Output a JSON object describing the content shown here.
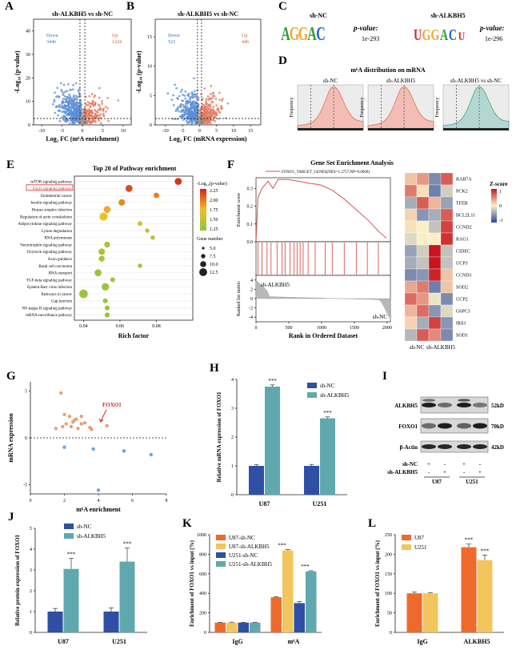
{
  "panels": {
    "A": {
      "label": "A",
      "title": "sh-ALKBH5 vs sh-NC",
      "xlabel": "Log₂ FC (m⁶A enrichment)",
      "ylabel": "-Log₁₀ (p-value)",
      "down_label": "Down",
      "down_count": "3446",
      "up_label": "Up",
      "up_count": "1224",
      "xticks": [
        "-10",
        "-5",
        "0",
        "5",
        "10"
      ],
      "yticks": [
        "0",
        "10",
        "20",
        "30",
        "40"
      ],
      "down_color": "#5b8fd4",
      "up_color": "#e07a5f"
    },
    "B": {
      "label": "B",
      "title": "sh-ALKBH5 vs sh-NC",
      "xlabel": "Log₂ FC (mRNA expression)",
      "ylabel": "-Log₁₀ (p-value)",
      "down_label": "Down",
      "down_count": "523",
      "up_label": "Up",
      "up_count": "446",
      "xticks": [
        "-10",
        "-5",
        "0",
        "5",
        "10",
        "15"
      ],
      "yticks": [
        "0",
        "5",
        "10",
        "15"
      ]
    },
    "C": {
      "label": "C",
      "left_title": "sh-NC",
      "left_motif": "GGAC",
      "left_pvalue_label": "p-value:",
      "left_pvalue": "1e-293",
      "right_title": "sh-ALKBH5",
      "right_motif": "GGAC",
      "right_pvalue_label": "p-value:",
      "right_pvalue": "1e-296"
    },
    "D": {
      "label": "D",
      "title": "m⁶A distribution on mRNA",
      "subplots": [
        {
          "title": "sh-NC",
          "fill": "#f4b5ad",
          "line": "#e07a5f"
        },
        {
          "title": "sh-ALKBH5",
          "fill": "#f4b5ad",
          "line": "#e07a5f"
        },
        {
          "title": "sh-ALKBH5 vs sh-NC",
          "fill": "#a8d5cd",
          "line": "#5aa597"
        }
      ],
      "ylabel": "Frequency"
    },
    "E": {
      "label": "E",
      "title": "Top 20 of Pathway enrichment",
      "xlabel": "Rich factor",
      "xticks": [
        "0.04",
        "0.06",
        "0.08"
      ],
      "legend_color_title": "-Log₁₀(p-value)",
      "legend_color_ticks": [
        "2.25",
        "2.00",
        "1.75",
        "1.50",
        "1.25"
      ],
      "legend_size_title": "Gene number",
      "legend_size_ticks": [
        "5.0",
        "7.5",
        "10.0",
        "12.5"
      ],
      "highlighted": "FoxO signaling pathway",
      "highlight_color": "#d62728"
    },
    "F": {
      "label": "F",
      "title": "Gene Set Enrichment Analysis",
      "legend": "FOXO1_TARGET_GENES(NES=1.2757,NP=0.0000)",
      "ylabel_top": "Enrichment score",
      "ylabel_bottom": "Ranked list metric",
      "xlabel": "Rank in Ordered Dataset",
      "xticks": [
        "0",
        "500",
        "1000",
        "1500",
        "2000"
      ],
      "yticks_top": [
        "0.0",
        "0.1",
        "0.2",
        "0.3"
      ],
      "yticks_bottom": [
        "-4",
        "-2",
        "0",
        "2",
        "4"
      ],
      "group_top": "sh-ALKBH5",
      "group_bottom": "sh-NC",
      "heatmap_xlabels": [
        "sh-NC",
        "sh-ALKBH5"
      ],
      "heatmap_legend_title": "Z-score",
      "heatmap_legend_ticks": [
        "1",
        "0",
        "-1"
      ],
      "line_color": "#d9534f"
    },
    "G": {
      "label": "G",
      "xlabel": "m⁶A enrichment",
      "ylabel": "mRNA expression",
      "highlight": "FOXO1",
      "xticks": [
        "0",
        "2",
        "4",
        "6",
        "8"
      ],
      "yticks": [
        "5",
        "0",
        "-5"
      ]
    },
    "H": {
      "label": "H",
      "ylabel": "Relative mRNA expression of FOXO1",
      "legend": [
        "sh-NC",
        "sh-ALKBH5"
      ],
      "yticks": [
        "0",
        "1",
        "2",
        "3",
        "4"
      ],
      "sig": [
        "***",
        "***"
      ]
    },
    "I": {
      "label": "I",
      "rows": [
        "ALKBH5",
        "FOXO1",
        "β-Actin"
      ],
      "sizes": [
        "52kD",
        "70kD",
        "42kD"
      ],
      "shNC_label": "sh-NC",
      "shALKBH5_label": "sh-ALKBH5",
      "shNC_signs": [
        "+",
        "-",
        "+",
        "-"
      ],
      "shALKBH5_signs": [
        "-",
        "+",
        "-",
        "+"
      ],
      "cells": [
        "U87",
        "U251"
      ]
    },
    "J": {
      "label": "J",
      "ylabel": "Relative protein expression of FOXO1",
      "legend": [
        "sh-NC",
        "sh-ALKBH5"
      ],
      "yticks": [
        "0",
        "1",
        "2",
        "3",
        "4",
        "5"
      ],
      "sig": [
        "***",
        "***"
      ]
    },
    "K": {
      "label": "K",
      "ylabel": "Enrichment of FOXO1 vs input (%)",
      "legend": [
        "U87-sh-NC",
        "U87-sh-ALKBH5",
        "U251-sh-NC",
        "U251-sh-ALKBH5"
      ],
      "yticks": [
        "0",
        "200",
        "400",
        "600",
        "800",
        "1000"
      ],
      "sig": [
        "***",
        "***"
      ]
    },
    "L": {
      "label": "L",
      "ylabel": "Enrichment of FOXO1 vs input (%)",
      "legend": [
        "U87",
        "U251"
      ],
      "yticks": [
        "0",
        "50",
        "100",
        "150",
        "200",
        "250"
      ],
      "sig": [
        "***",
        "***"
      ]
    }
  },
  "chart_data": [
    {
      "panel": "E",
      "type": "scatter",
      "title": "Top 20 of Pathway enrichment",
      "xlabel": "Rich factor",
      "xlim": [
        0.035,
        0.1
      ],
      "categories": [
        "mTOR signaling pathway",
        "FoxO signaling pathway",
        "Endometrial cancer",
        "Insulin signaling pathway",
        "Herpes simplex infection",
        "Regulation of actin cytoskeleton",
        "Adipocytokine signaling pathway",
        "Lysine degradation",
        "RNA polymerase",
        "Neurotrophin signaling pathway",
        "Oxytocin signaling pathway",
        "Axon guidance",
        "Basal cell carcinoma",
        "RNA transport",
        "TGF-beta signaling pathway",
        "Epstein-Barr virus infection",
        "Pathways in cancer",
        "Gap junction",
        "NF-kappa B signaling pathway",
        "mRNA surveillance pathway"
      ],
      "x": [
        0.092,
        0.065,
        0.08,
        0.061,
        0.053,
        0.051,
        0.071,
        0.075,
        0.078,
        0.053,
        0.05,
        0.05,
        0.071,
        0.048,
        0.056,
        0.052,
        0.04,
        0.052,
        0.053,
        0.053
      ],
      "gene_number": [
        9,
        9,
        6,
        8,
        9,
        11,
        5,
        4,
        4,
        7,
        8,
        7,
        4,
        9,
        5,
        10,
        12,
        5,
        5,
        5
      ],
      "neg_log10_p": [
        2.4,
        2.3,
        2.1,
        2.05,
        1.9,
        1.8,
        1.65,
        1.5,
        1.45,
        1.4,
        1.35,
        1.35,
        1.3,
        1.3,
        1.3,
        1.3,
        1.3,
        1.25,
        1.25,
        1.25
      ]
    },
    {
      "panel": "H",
      "type": "bar",
      "ylabel": "Relative mRNA expression of FOXO1",
      "categories": [
        "U87",
        "U251"
      ],
      "ylim": [
        0,
        4
      ],
      "series": [
        {
          "name": "sh-NC",
          "values": [
            1.0,
            1.0
          ],
          "errors": [
            0.04,
            0.05
          ],
          "color": "#2e4fa3"
        },
        {
          "name": "sh-ALKBH5",
          "values": [
            3.75,
            2.65
          ],
          "errors": [
            0.06,
            0.05
          ],
          "color": "#5fa9ae"
        }
      ]
    },
    {
      "panel": "J",
      "type": "bar",
      "ylabel": "Relative protein expression of FOXO1",
      "categories": [
        "U87",
        "U251"
      ],
      "ylim": [
        0,
        5
      ],
      "series": [
        {
          "name": "sh-NC",
          "values": [
            1.0,
            1.0
          ],
          "errors": [
            0.15,
            0.18
          ],
          "color": "#2e4fa3"
        },
        {
          "name": "sh-ALKBH5",
          "values": [
            3.05,
            3.4
          ],
          "errors": [
            0.5,
            0.65
          ],
          "color": "#5fa9ae"
        }
      ]
    },
    {
      "panel": "K",
      "type": "bar",
      "ylabel": "Enrichment of FOXO1 vs input (%)",
      "categories": [
        "IgG",
        "m⁶A"
      ],
      "ylim": [
        0,
        1000
      ],
      "series": [
        {
          "name": "U87-sh-NC",
          "values": [
            100,
            360
          ],
          "errors": [
            3,
            4
          ],
          "color": "#ee6a2c"
        },
        {
          "name": "U87-sh-ALKBH5",
          "values": [
            100,
            840
          ],
          "errors": [
            3,
            8
          ],
          "color": "#f2c65c"
        },
        {
          "name": "U251-sh-NC",
          "values": [
            100,
            300
          ],
          "errors": [
            3,
            15
          ],
          "color": "#2e4fa3"
        },
        {
          "name": "U251-sh-ALKBH5",
          "values": [
            100,
            625
          ],
          "errors": [
            3,
            6
          ],
          "color": "#5fa9ae"
        }
      ]
    },
    {
      "panel": "L",
      "type": "bar",
      "ylabel": "Enrichment of FOXO1 vs input (%)",
      "categories": [
        "IgG",
        "ALKBH5"
      ],
      "ylim": [
        0,
        250
      ],
      "series": [
        {
          "name": "U87",
          "values": [
            100,
            218
          ],
          "errors": [
            3,
            8
          ],
          "color": "#ee6a2c"
        },
        {
          "name": "U251",
          "values": [
            100,
            185
          ],
          "errors": [
            2,
            13
          ],
          "color": "#f2c65c"
        }
      ]
    },
    {
      "panel": "G",
      "type": "scatter",
      "xlabel": "m⁶A enrichment",
      "ylabel": "mRNA expression",
      "xlim": [
        0,
        8
      ],
      "ylim": [
        -6,
        6
      ],
      "series": [
        {
          "name": "up",
          "color": "#e8a07a",
          "x": [
            1.8,
            2.0,
            2.1,
            2.3,
            2.4,
            2.5,
            2.7,
            2.8,
            3.0,
            3.0,
            3.2,
            3.5,
            3.6,
            1.5,
            1.9,
            2.6,
            4.5
          ],
          "y": [
            4.8,
            2.5,
            1.5,
            2.3,
            1.2,
            1.7,
            2.0,
            1.0,
            1.5,
            2.3,
            1.6,
            1.1,
            0.9,
            1.0,
            1.2,
            1.9,
            1.3
          ]
        },
        {
          "name": "down",
          "color": "#6aa6dd",
          "x": [
            2.0,
            3.7,
            5.5,
            7.1,
            4.0
          ],
          "y": [
            -1.0,
            -1.2,
            -1.4,
            -1.8,
            -5.6
          ]
        }
      ]
    }
  ]
}
